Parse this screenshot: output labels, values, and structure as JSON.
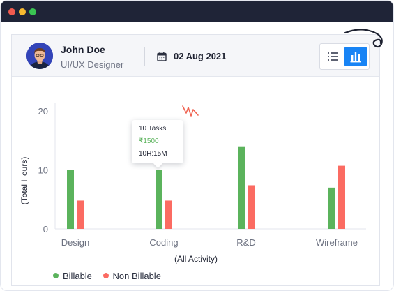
{
  "window": {
    "controls": [
      "close",
      "minimize",
      "maximize"
    ]
  },
  "header": {
    "user_name": "John Doe",
    "user_role": "UI/UX Designer",
    "date": "02 Aug 2021",
    "view_options": [
      "list-icon",
      "bar-chart-icon"
    ],
    "active_view": "bar-chart-icon"
  },
  "tooltip": {
    "tasks": "10 Tasks",
    "amount": "₹1500",
    "time": "10H:15M"
  },
  "colors": {
    "billable": "#5bb35c",
    "non_billable": "#fb6b62",
    "accent": "#1884f5",
    "titlebar": "#1f2437"
  },
  "chart_data": {
    "type": "bar",
    "categories": [
      "Design",
      "Coding",
      "R&D",
      "Wireframe"
    ],
    "series": [
      {
        "name": "Billable",
        "values": [
          10,
          10,
          14,
          7
        ]
      },
      {
        "name": "Non Billable",
        "values": [
          4.8,
          4.8,
          7.4,
          10.7
        ]
      }
    ],
    "yticks": [
      0,
      10,
      20
    ],
    "ylim": [
      0,
      20
    ],
    "xlabel": "(All Activity)",
    "ylabel": "(Total Hours)",
    "legend_position": "bottom-left",
    "grid": false
  }
}
